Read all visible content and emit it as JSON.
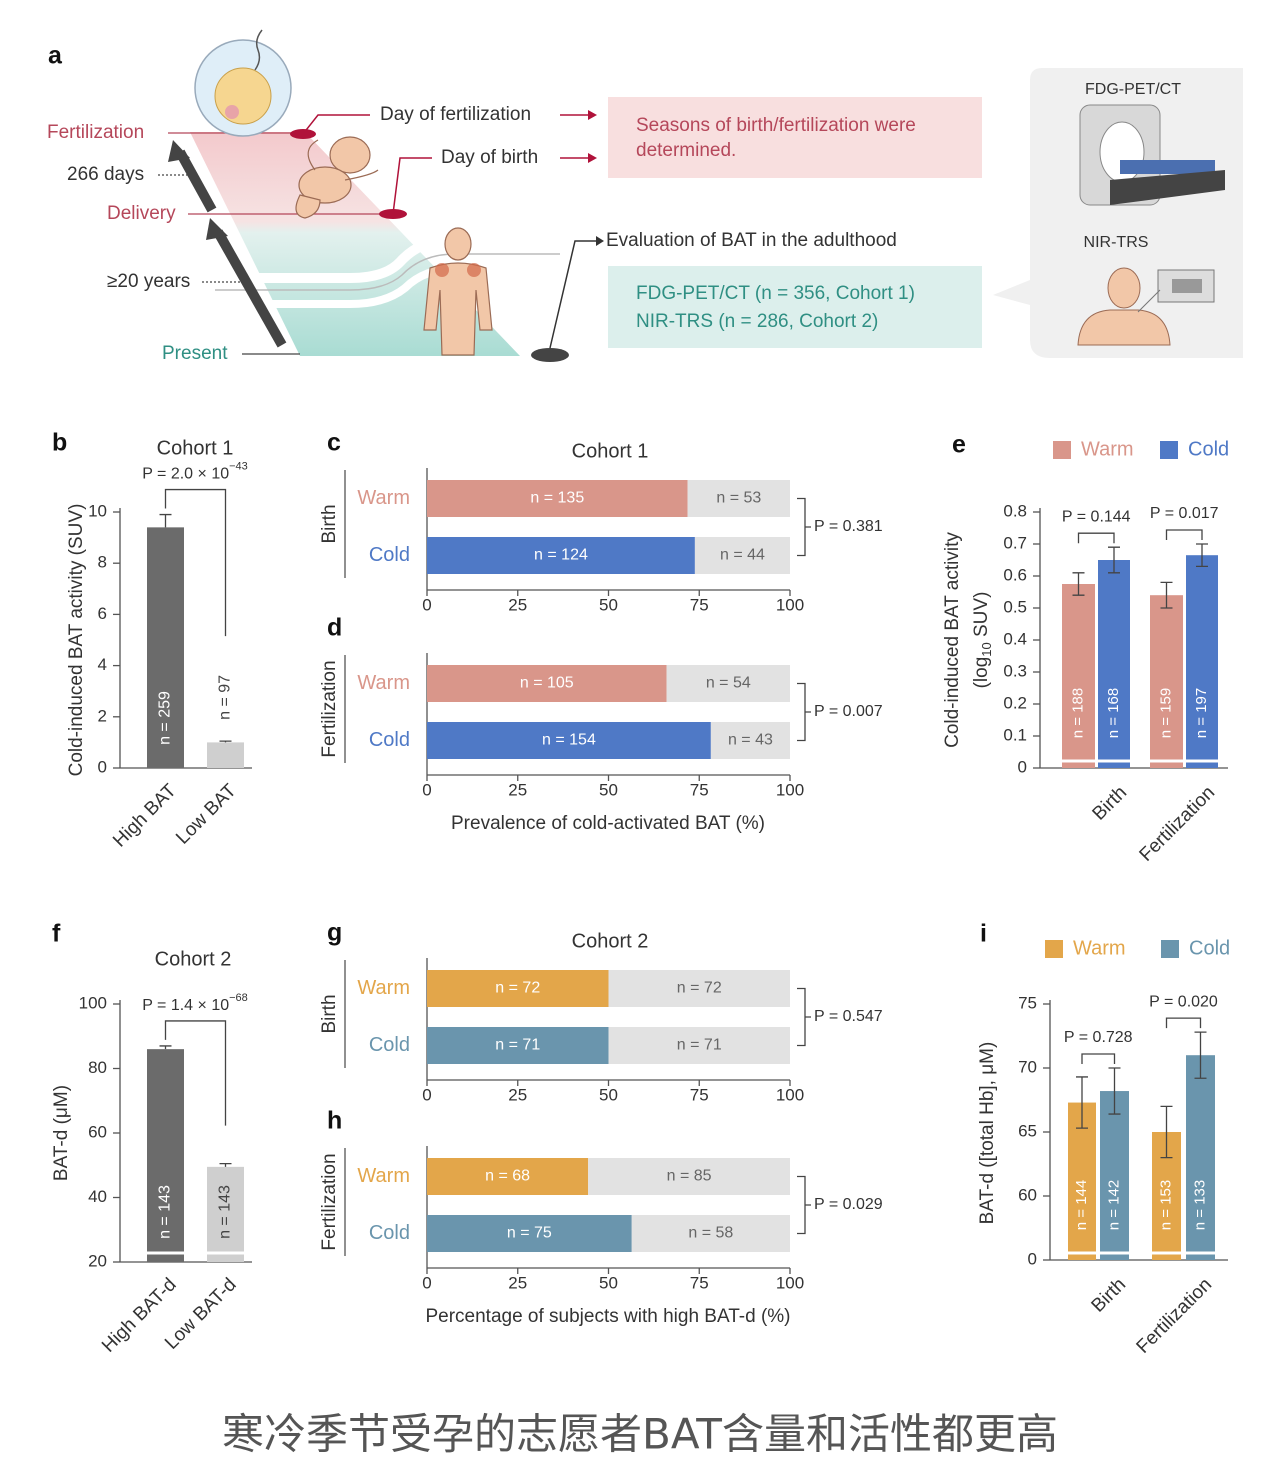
{
  "panel_a": {
    "label": "a",
    "timeline": [
      "Fertilization",
      "266 days",
      "Delivery",
      "≥20 years",
      "Present"
    ],
    "events": [
      "Day of fertilization",
      "Day of birth"
    ],
    "seasons_box": [
      "Seasons of birth/fertilization were",
      "determined."
    ],
    "evaluation": "Evaluation of BAT in the adulthood",
    "methods_box": [
      "FDG-PET/CT (n = 356, Cohort 1)",
      "NIR-TRS (n = 286, Cohort 2)"
    ],
    "devices": [
      "FDG-PET/CT",
      "NIR-TRS"
    ]
  },
  "chart_data": [
    {
      "type": "bar",
      "label": "b",
      "title": "Cohort 1",
      "ylabel": "Cold-induced BAT activity (SUV)",
      "categories": [
        "High BAT",
        "Low BAT"
      ],
      "values": [
        9.4,
        1.0
      ],
      "errors": [
        0.5,
        0.05
      ],
      "colors": [
        "#6b6b6b",
        "#cfcfcf"
      ],
      "bar_labels": [
        "n = 259",
        "n = 97"
      ],
      "comparison": {
        "text": "P = 2.0 × 10",
        "exponent": "−43"
      },
      "ylim": [
        0,
        10
      ],
      "yticks": [
        0,
        2,
        4,
        6,
        8,
        10
      ]
    },
    {
      "type": "stacked_barh",
      "label": "c",
      "title": "Cohort 1",
      "group": "Birth",
      "rest_color": "#e2e2e2",
      "rows": [
        {
          "category": "Warm",
          "color": "#d9968a",
          "values": [
            71.8,
            28.2
          ],
          "labels": [
            "n = 135",
            "n = 53"
          ]
        },
        {
          "category": "Cold",
          "color": "#4f79c6",
          "values": [
            73.8,
            26.2
          ],
          "labels": [
            "n = 124",
            "n = 44"
          ]
        }
      ],
      "comparison": "P = 0.381",
      "xlim": [
        0,
        100
      ],
      "xticks": [
        0,
        25,
        50,
        75,
        100
      ]
    },
    {
      "type": "stacked_barh",
      "label": "d",
      "group": "Fertilization",
      "xlabel": "Prevalence of cold-activated BAT (%)",
      "rest_color": "#e2e2e2",
      "rows": [
        {
          "category": "Warm",
          "color": "#d9968a",
          "values": [
            66.0,
            34.0
          ],
          "labels": [
            "n = 105",
            "n = 54"
          ]
        },
        {
          "category": "Cold",
          "color": "#4f79c6",
          "values": [
            78.2,
            21.8
          ],
          "labels": [
            "n = 154",
            "n = 43"
          ]
        }
      ],
      "comparison": "P = 0.007",
      "xlim": [
        0,
        100
      ],
      "xticks": [
        0,
        25,
        50,
        75,
        100
      ]
    },
    {
      "type": "grouped_bar",
      "label": "e",
      "ylabel": "Cold-induced BAT activity",
      "ylabel2": [
        "(log",
        "10",
        " SUV)"
      ],
      "categories": [
        "Birth",
        "Fertilization"
      ],
      "series": [
        {
          "name": "Warm",
          "color": "#d9968a",
          "values": [
            0.575,
            0.54
          ],
          "errors": [
            0.035,
            0.04
          ],
          "labels": [
            "n = 188",
            "n = 159"
          ]
        },
        {
          "name": "Cold",
          "color": "#4f79c6",
          "values": [
            0.65,
            0.665
          ],
          "errors": [
            0.04,
            0.035
          ],
          "labels": [
            "n = 168",
            "n = 197"
          ]
        }
      ],
      "comparisons": [
        "P = 0.144",
        "P = 0.017"
      ],
      "ylim": [
        0,
        0.8
      ],
      "yticks": [
        0,
        0.1,
        0.2,
        0.3,
        0.4,
        0.5,
        0.6,
        0.7,
        0.8
      ],
      "axis_break": true
    },
    {
      "type": "bar",
      "label": "f",
      "title": "Cohort 2",
      "ylabel": "BAT-d (μM)",
      "categories": [
        "High BAT-d",
        "Low BAT-d"
      ],
      "values": [
        86,
        49.5
      ],
      "errors": [
        1,
        1
      ],
      "colors": [
        "#6b6b6b",
        "#cfcfcf"
      ],
      "bar_labels": [
        "n = 143",
        "n = 143"
      ],
      "comparison": {
        "text": "P = 1.4 × 10",
        "exponent": "−68"
      },
      "ylim": [
        20,
        100
      ],
      "yticks": [
        20,
        40,
        60,
        80,
        100
      ],
      "axis_break": true
    },
    {
      "type": "stacked_barh",
      "label": "g",
      "title": "Cohort 2",
      "group": "Birth",
      "rest_color": "#e2e2e2",
      "rows": [
        {
          "category": "Warm",
          "color": "#e3a64a",
          "values": [
            50,
            50
          ],
          "labels": [
            "n = 72",
            "n = 72"
          ]
        },
        {
          "category": "Cold",
          "color": "#6a95ad",
          "values": [
            50,
            50
          ],
          "labels": [
            "n = 71",
            "n = 71"
          ]
        }
      ],
      "comparison": "P = 0.547",
      "xlim": [
        0,
        100
      ],
      "xticks": [
        0,
        25,
        50,
        75,
        100
      ]
    },
    {
      "type": "stacked_barh",
      "label": "h",
      "group": "Fertilization",
      "xlabel": "Percentage of subjects with high BAT-d (%)",
      "rest_color": "#e2e2e2",
      "rows": [
        {
          "category": "Warm",
          "color": "#e3a64a",
          "values": [
            44.4,
            55.6
          ],
          "labels": [
            "n = 68",
            "n = 85"
          ]
        },
        {
          "category": "Cold",
          "color": "#6a95ad",
          "values": [
            56.4,
            43.6
          ],
          "labels": [
            "n = 75",
            "n = 58"
          ]
        }
      ],
      "comparison": "P = 0.029",
      "xlim": [
        0,
        100
      ],
      "xticks": [
        0,
        25,
        50,
        75,
        100
      ]
    },
    {
      "type": "grouped_bar",
      "label": "i",
      "ylabel": "BAT-d ([total Hb], μM)",
      "categories": [
        "Birth",
        "Fertilization"
      ],
      "series": [
        {
          "name": "Warm",
          "color": "#e3a64a",
          "values": [
            67.3,
            65.0
          ],
          "errors": [
            2.0,
            2.0
          ],
          "labels": [
            "n = 144",
            "n = 153"
          ]
        },
        {
          "name": "Cold",
          "color": "#6a95ad",
          "values": [
            68.2,
            71.0
          ],
          "errors": [
            1.8,
            1.8
          ],
          "labels": [
            "n = 142",
            "n = 133"
          ]
        }
      ],
      "comparisons": [
        "P = 0.728",
        "P = 0.020"
      ],
      "ylim": [
        0,
        75
      ],
      "ybreak": [
        0,
        60
      ],
      "yticks": [
        0,
        60,
        65,
        70,
        75
      ],
      "axis_break": true
    }
  ],
  "caption": "寒冷季节受孕的志愿者BAT含量和活性都更高"
}
